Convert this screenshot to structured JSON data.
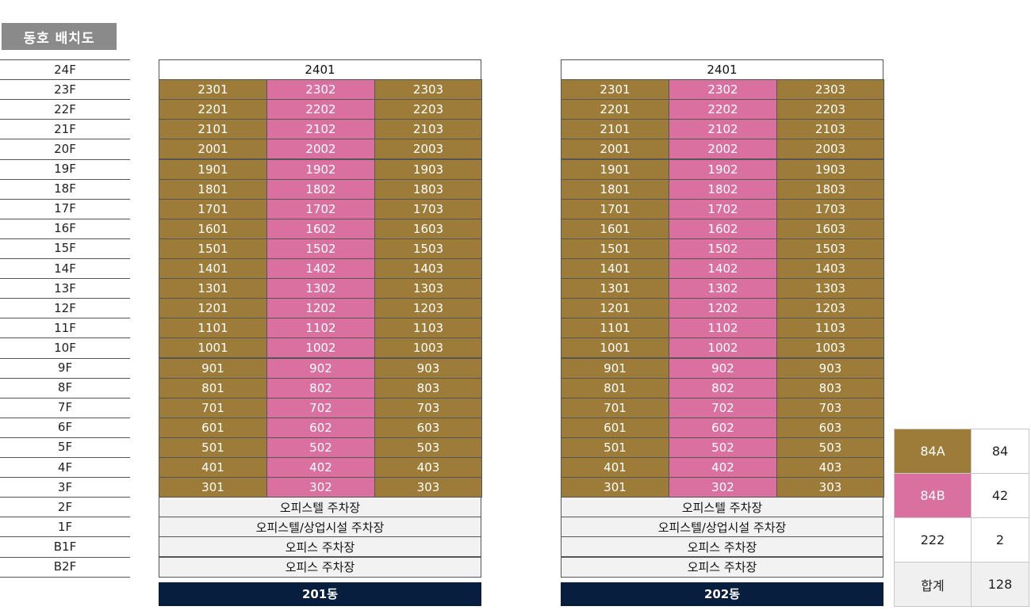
{
  "title": "동호 배치도",
  "floors": [
    "24F",
    "23F",
    "22F",
    "21F",
    "20F",
    "19F",
    "18F",
    "17F",
    "16F",
    "15F",
    "14F",
    "13F",
    "12F",
    "11F",
    "10F",
    "9F",
    "8F",
    "7F",
    "6F",
    "5F",
    "4F",
    "3F",
    "2F",
    "1F",
    "B1F",
    "B2F"
  ],
  "buildings": [
    {
      "name": "201동",
      "top_unit": "2401",
      "unit_floors": [
        "23",
        "22",
        "21",
        "20",
        "19",
        "18",
        "17",
        "16",
        "15",
        "14",
        "13",
        "12",
        "11",
        "10",
        "9",
        "8",
        "7",
        "6",
        "5",
        "4",
        "3"
      ],
      "unit_suffixes": [
        "01",
        "02",
        "03"
      ],
      "unit_types": [
        "84A",
        "84B",
        "84A"
      ],
      "facilities": [
        "오피스텔 주차장",
        "오피스텔/상업시설 주차장",
        "오피스 주차장",
        "오피스 주차장"
      ]
    },
    {
      "name": "202동",
      "top_unit": "2401",
      "unit_floors": [
        "23",
        "22",
        "21",
        "20",
        "19",
        "18",
        "17",
        "16",
        "15",
        "14",
        "13",
        "12",
        "11",
        "10",
        "9",
        "8",
        "7",
        "6",
        "5",
        "4",
        "3"
      ],
      "unit_suffixes": [
        "01",
        "02",
        "03"
      ],
      "unit_types": [
        "84A",
        "84B",
        "84A"
      ],
      "facilities": [
        "오피스텔 주차장",
        "오피스텔/상업시설 주차장",
        "오피스 주차장",
        "오피스 주차장"
      ]
    }
  ],
  "legend": [
    {
      "type": "84A",
      "count": "84",
      "color": "#9c7c38",
      "text_color": "#ffffff"
    },
    {
      "type": "84B",
      "count": "42",
      "color": "#d970a0",
      "text_color": "#ffffff"
    },
    {
      "type": "222",
      "count": "2",
      "color": "#ffffff",
      "text_color": "#222222"
    },
    {
      "type": "합계",
      "count": "128",
      "color": "#f0f0f0",
      "text_color": "#222222"
    }
  ],
  "colors": {
    "type_84A": "#9c7c38",
    "type_84B": "#d970a0",
    "building_label": "#071e3f",
    "facility": "#f2f2f2",
    "title_badge": "#8a8a8a"
  }
}
